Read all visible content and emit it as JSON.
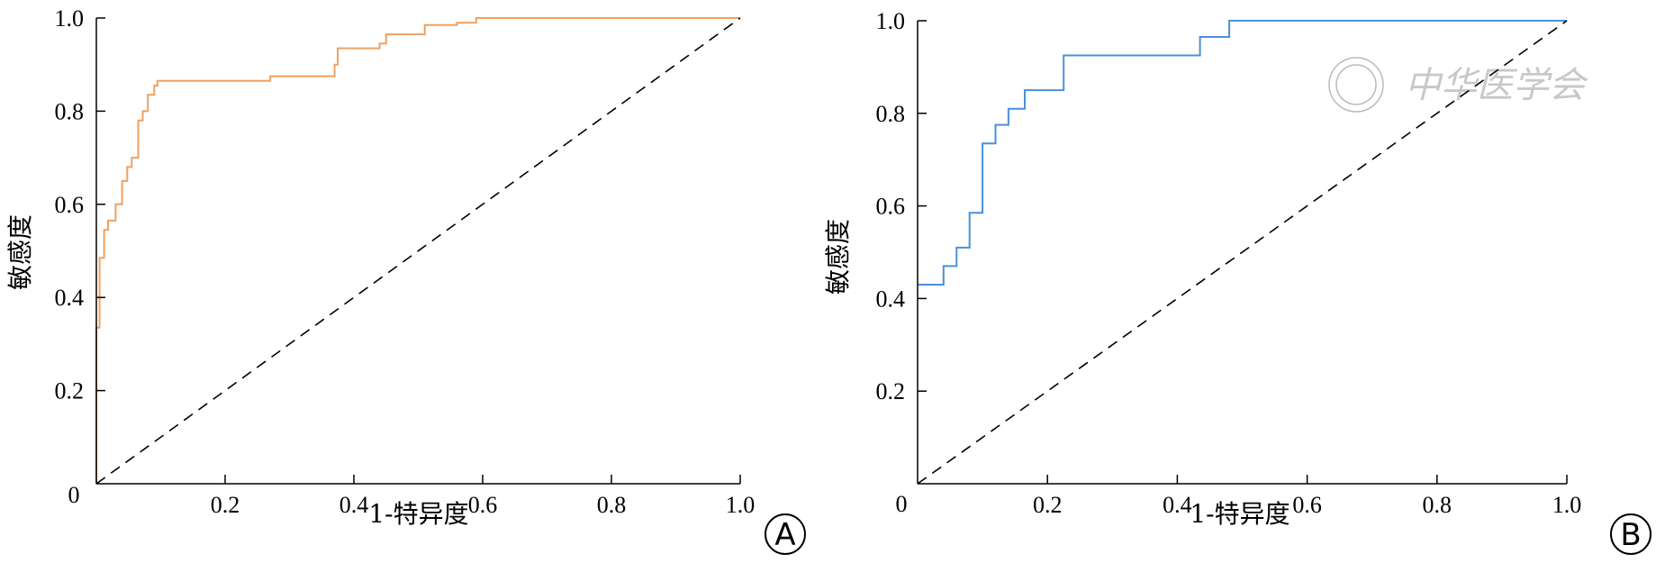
{
  "chart_data": [
    {
      "type": "line",
      "panel_label": "A",
      "xlabel": "1-特异度",
      "ylabel": "敏感度",
      "xlim": [
        0,
        1.0
      ],
      "ylim": [
        0,
        1.0
      ],
      "xticks": [
        "0.2",
        "0.4",
        "0.6",
        "0.8",
        "1.0"
      ],
      "yticks": [
        "0.2",
        "0.4",
        "0.6",
        "0.8",
        "1.0"
      ],
      "origin_label": "0",
      "grid": false,
      "series": [
        {
          "color": "#F0A060",
          "style": "step",
          "x": [
            0,
            0,
            0.005,
            0.005,
            0.012,
            0.012,
            0.018,
            0.018,
            0.03,
            0.03,
            0.04,
            0.04,
            0.048,
            0.048,
            0.055,
            0.055,
            0.065,
            0.065,
            0.072,
            0.072,
            0.08,
            0.08,
            0.09,
            0.09,
            0.095,
            0.095,
            0.1,
            0.1,
            0.27,
            0.27,
            0.37,
            0.37,
            0.375,
            0.375,
            0.44,
            0.44,
            0.45,
            0.45,
            0.51,
            0.51,
            0.56,
            0.56,
            0.59,
            0.59,
            1.0
          ],
          "y": [
            0,
            0.335,
            0.335,
            0.485,
            0.485,
            0.545,
            0.545,
            0.565,
            0.565,
            0.6,
            0.6,
            0.65,
            0.65,
            0.68,
            0.68,
            0.7,
            0.7,
            0.78,
            0.78,
            0.8,
            0.8,
            0.835,
            0.835,
            0.855,
            0.855,
            0.865,
            0.865,
            0.865,
            0.865,
            0.875,
            0.875,
            0.9,
            0.9,
            0.935,
            0.935,
            0.945,
            0.945,
            0.965,
            0.965,
            0.985,
            0.985,
            0.99,
            0.99,
            1.0,
            1.0
          ]
        },
        {
          "color": "#000000",
          "style": "dashed",
          "x": [
            0,
            1.0
          ],
          "y": [
            0,
            1.0
          ]
        }
      ]
    },
    {
      "type": "line",
      "panel_label": "B",
      "xlabel": "1-特异度",
      "ylabel": "敏感度",
      "xlim": [
        0,
        1.0
      ],
      "ylim": [
        0,
        1.0
      ],
      "xticks": [
        "0.2",
        "0.4",
        "0.6",
        "0.8",
        "1.0"
      ],
      "yticks": [
        "0.2",
        "0.4",
        "0.6",
        "0.8",
        "1.0"
      ],
      "origin_label": "0",
      "grid": false,
      "series": [
        {
          "color": "#4A90D9",
          "style": "step",
          "x": [
            0,
            0.04,
            0.04,
            0.06,
            0.06,
            0.08,
            0.08,
            0.1,
            0.1,
            0.12,
            0.12,
            0.14,
            0.14,
            0.165,
            0.165,
            0.225,
            0.225,
            0.435,
            0.435,
            0.48,
            0.48,
            1.0
          ],
          "y": [
            0.43,
            0.43,
            0.47,
            0.47,
            0.51,
            0.51,
            0.585,
            0.585,
            0.735,
            0.735,
            0.775,
            0.775,
            0.81,
            0.81,
            0.85,
            0.85,
            0.925,
            0.925,
            0.965,
            0.965,
            1.0,
            1.0
          ]
        },
        {
          "color": "#000000",
          "style": "dashed",
          "x": [
            0,
            1.0
          ],
          "y": [
            0,
            1.0
          ]
        }
      ]
    }
  ],
  "watermark": {
    "text": "中华医学会"
  }
}
